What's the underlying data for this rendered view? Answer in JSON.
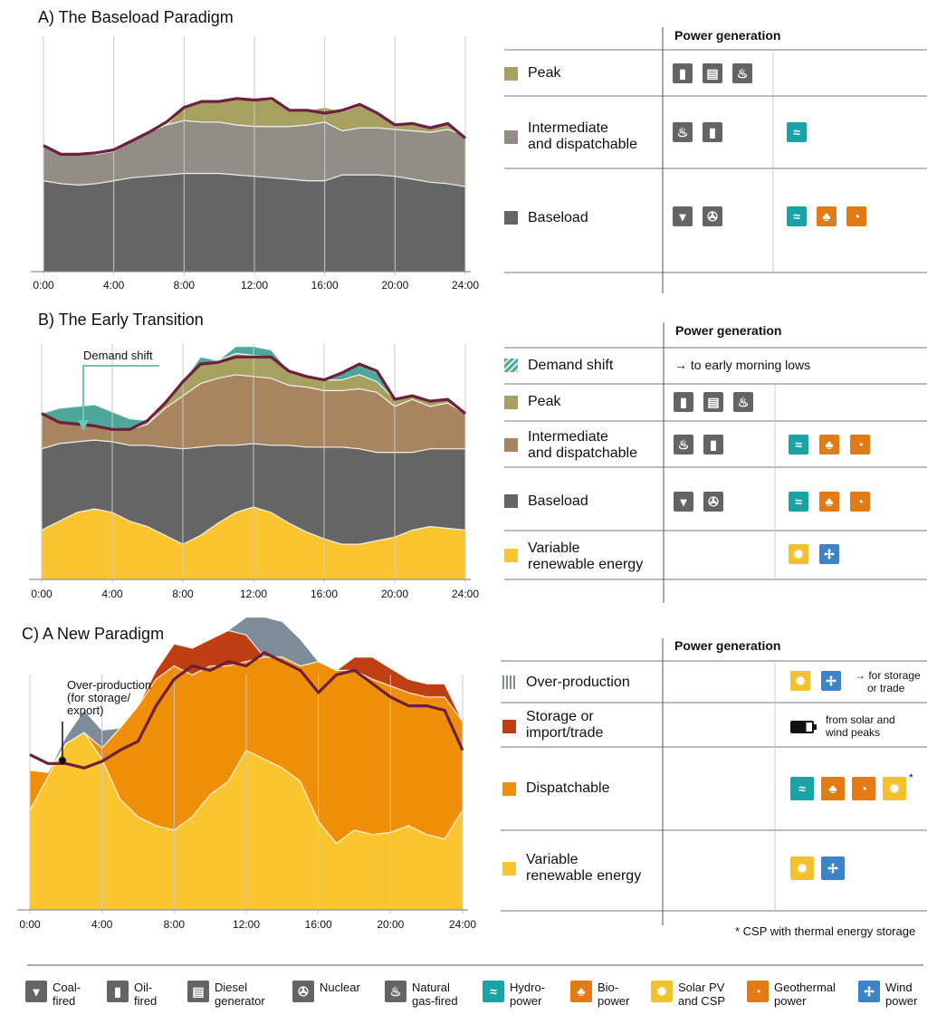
{
  "colors": {
    "peak": "#a6a061",
    "intermediate_a": "#938d88",
    "intermediate_b": "#a8845f",
    "baseload": "#666565",
    "variable": "#fbc52f",
    "demand_shift": "#4ea79b",
    "storage": "#bf3f12",
    "dispatchable": "#ef8f08",
    "demand_line": "#6e1f3c",
    "overproduction": "#7e8b98"
  },
  "panels": [
    {
      "title": "A) The Baseload Paradigm"
    },
    {
      "title": "B) The Early Transition"
    },
    {
      "title": "C) A New Paradigm"
    }
  ],
  "annotations": {
    "demand_shift": "Demand shift",
    "over_production": [
      "Over-production",
      "(for storage/",
      "export)"
    ]
  },
  "tables": {
    "header": "Power generation",
    "a": [
      {
        "label": "Peak",
        "icons": [
          "oil-fired-icon",
          "diesel-generator-icon",
          "natural-gas-fired-icon"
        ],
        "renewables": []
      },
      {
        "label": "Intermediate\nand dispatchable",
        "icons": [
          "natural-gas-fired-icon",
          "oil-fired-icon"
        ],
        "renewables": [
          "hydropower-icon"
        ]
      },
      {
        "label": "Baseload",
        "icons": [
          "coal-fired-icon",
          "nuclear-icon"
        ],
        "renewables": [
          "hydropower-icon",
          "biopower-icon",
          "geothermal-icon"
        ]
      }
    ],
    "b": [
      {
        "label": "Demand shift",
        "note": "→ to early morning lows"
      },
      {
        "label": "Peak"
      },
      {
        "label": "Intermediate\nand dispatchable"
      },
      {
        "label": "Baseload"
      },
      {
        "label": "Variable\nrenewable energy"
      }
    ],
    "c": [
      {
        "label": "Over-production",
        "note": [
          "→ for storage",
          "or trade"
        ]
      },
      {
        "label": "Storage or\nimport/trade",
        "note": [
          "from solar and",
          "wind peaks"
        ]
      },
      {
        "label": "Dispatchable",
        "note": [
          "*"
        ]
      },
      {
        "label": "Variable\nrenewable energy"
      }
    ],
    "footnote": "* CSP with thermal energy storage"
  },
  "legend": [
    {
      "label": "Coal-\nfired",
      "icon": "coal-fired-icon"
    },
    {
      "label": "Oil-\nfired",
      "icon": "oil-fired-icon"
    },
    {
      "label": "Diesel\ngenerator",
      "icon": "diesel-generator-icon"
    },
    {
      "label": "Nuclear",
      "icon": "nuclear-icon"
    },
    {
      "label": "Natural\ngas-fired",
      "icon": "natural-gas-fired-icon"
    },
    {
      "label": "Hydro-\npower",
      "icon": "hydropower-icon"
    },
    {
      "label": "Bio-\npower",
      "icon": "biopower-icon"
    },
    {
      "label": "Solar PV\nand CSP",
      "icon": "solar-icon"
    },
    {
      "label": "Geothermal\npower",
      "icon": "geothermal-icon"
    },
    {
      "label": "Wind\npower",
      "icon": "wind-icon"
    }
  ],
  "chart_data": [
    {
      "type": "area",
      "title": "A) The Baseload Paradigm",
      "x_ticks": [
        "0:00",
        "4:00",
        "8:00",
        "12:00",
        "16:00",
        "20:00",
        "24:00"
      ],
      "x": [
        0,
        1,
        2,
        3,
        4,
        5,
        6,
        7,
        8,
        9,
        10,
        11,
        12,
        13,
        14,
        15,
        16,
        17,
        18,
        19,
        20,
        21,
        22,
        23,
        24
      ],
      "series": [
        {
          "name": "Baseload",
          "values": [
            62,
            60,
            59,
            60,
            62,
            64,
            65,
            66,
            67,
            67,
            67,
            66,
            65,
            64,
            63,
            62,
            62,
            66,
            66,
            66,
            65,
            63,
            61,
            60,
            58
          ]
        },
        {
          "name": "Intermediate and dispatchable",
          "values": [
            24,
            20,
            21,
            20,
            20,
            25,
            30,
            34,
            36,
            35,
            35,
            34,
            34,
            35,
            36,
            38,
            40,
            30,
            32,
            32,
            32,
            33,
            34,
            37,
            35
          ]
        },
        {
          "name": "Peak",
          "values": [
            0,
            0,
            0,
            0,
            0,
            0,
            0,
            0,
            9,
            14,
            14,
            18,
            18,
            18,
            11,
            10,
            10,
            13,
            15,
            10,
            2,
            5,
            3,
            4,
            0
          ]
        }
      ],
      "demand": [
        86,
        80,
        80,
        81,
        83,
        89,
        95,
        102,
        112,
        116,
        116,
        118,
        117,
        118,
        110,
        110,
        108,
        110,
        114,
        108,
        100,
        101,
        98,
        101,
        91
      ]
    },
    {
      "type": "area",
      "title": "B) The Early Transition",
      "x_ticks": [
        "0:00",
        "4:00",
        "8:00",
        "12:00",
        "16:00",
        "20:00",
        "24:00"
      ],
      "x": [
        0,
        1,
        2,
        3,
        4,
        5,
        6,
        7,
        8,
        9,
        10,
        11,
        12,
        13,
        14,
        15,
        16,
        17,
        18,
        19,
        20,
        21,
        22,
        23,
        24
      ],
      "series": [
        {
          "name": "Variable renewable energy",
          "values": [
            28,
            33,
            38,
            40,
            38,
            33,
            30,
            25,
            20,
            25,
            32,
            38,
            41,
            38,
            32,
            27,
            23,
            20,
            20,
            22,
            24,
            28,
            30,
            29,
            28
          ]
        },
        {
          "name": "Baseload",
          "values": [
            46,
            44,
            40,
            39,
            40,
            43,
            46,
            50,
            54,
            50,
            44,
            38,
            36,
            38,
            44,
            48,
            52,
            55,
            54,
            50,
            48,
            44,
            44,
            45,
            46
          ]
        },
        {
          "name": "Intermediate and dispatchable",
          "values": [
            20,
            12,
            10,
            8,
            7,
            9,
            12,
            22,
            30,
            36,
            38,
            40,
            38,
            38,
            34,
            34,
            32,
            32,
            34,
            34,
            26,
            30,
            24,
            26,
            20
          ]
        },
        {
          "name": "Peak",
          "values": [
            0,
            0,
            0,
            0,
            0,
            0,
            0,
            3,
            8,
            11,
            10,
            12,
            12,
            12,
            8,
            6,
            6,
            6,
            8,
            6,
            4,
            2,
            3,
            2,
            0
          ]
        },
        {
          "name": "Demand shift",
          "values": [
            0,
            8,
            10,
            12,
            10,
            6,
            2,
            0,
            0,
            4,
            0,
            4,
            5,
            4,
            0,
            0,
            0,
            4,
            6,
            5,
            0,
            0,
            0,
            0,
            0
          ]
        }
      ],
      "demand": [
        94,
        89,
        88,
        87,
        85,
        85,
        90,
        100,
        112,
        122,
        123,
        126,
        126,
        126,
        118,
        115,
        113,
        117,
        122,
        118,
        102,
        104,
        101,
        102,
        94
      ]
    },
    {
      "type": "area",
      "title": "C) A New Paradigm",
      "x_ticks": [
        "0:00",
        "4:00",
        "8:00",
        "12:00",
        "16:00",
        "20:00",
        "24:00"
      ],
      "x": [
        0,
        1,
        2,
        3,
        4,
        5,
        6,
        7,
        8,
        9,
        10,
        11,
        12,
        13,
        14,
        15,
        16,
        17,
        18,
        19,
        20,
        21,
        22,
        23,
        24
      ],
      "series": [
        {
          "name": "Variable renewable energy",
          "values": [
            45,
            60,
            75,
            80,
            68,
            50,
            42,
            38,
            36,
            42,
            52,
            58,
            72,
            68,
            64,
            58,
            40,
            30,
            36,
            34,
            35,
            38,
            34,
            32,
            45
          ]
        },
        {
          "name": "Dispatchable",
          "values": [
            18,
            2,
            0,
            0,
            5,
            32,
            50,
            66,
            74,
            64,
            58,
            52,
            40,
            46,
            50,
            52,
            72,
            78,
            72,
            70,
            66,
            60,
            62,
            64,
            40
          ]
        },
        {
          "name": "Storage or import/trade",
          "values": [
            0,
            0,
            0,
            0,
            0,
            0,
            0,
            4,
            10,
            12,
            12,
            16,
            12,
            0,
            0,
            0,
            0,
            0,
            6,
            10,
            8,
            6,
            6,
            6,
            0
          ]
        },
        {
          "name": "Over-production",
          "values": [
            0,
            0,
            3,
            10,
            8,
            0,
            0,
            0,
            0,
            0,
            0,
            0,
            8,
            18,
            16,
            12,
            0,
            0,
            0,
            0,
            0,
            0,
            0,
            0,
            0
          ]
        }
      ],
      "demand": [
        70,
        66,
        66,
        64,
        67,
        72,
        76,
        92,
        104,
        110,
        108,
        112,
        110,
        116,
        112,
        108,
        98,
        106,
        108,
        102,
        96,
        92,
        92,
        90,
        72
      ]
    }
  ]
}
